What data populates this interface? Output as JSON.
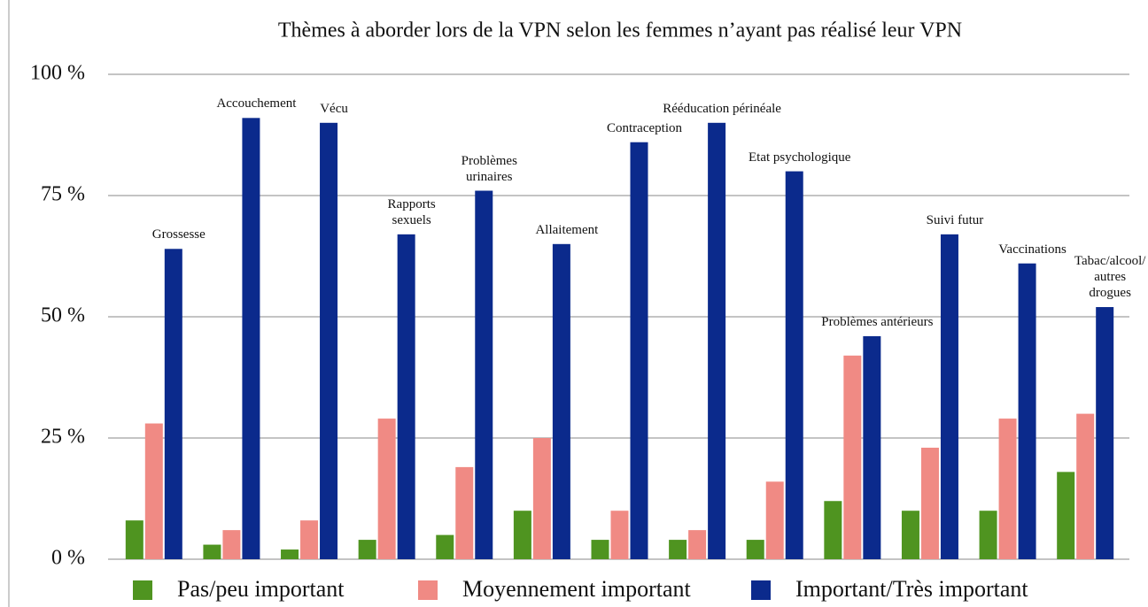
{
  "chart_data": {
    "type": "bar",
    "title": "Thèmes à aborder lors de la VPN selon les femmes n’ayant pas réalisé leur VPN",
    "categories": [
      "Grossesse",
      "Accouchement",
      "Vécu",
      "Rapports\nsexuels",
      "Problèmes\nurinaires",
      "Allaitement",
      "Contraception",
      "Rééducation périnéale",
      "Etat psychologique",
      "Problèmes antérieurs",
      "Suivi futur",
      "Vaccinations",
      "Tabac/alcool/\nautres drogues"
    ],
    "series": [
      {
        "name": "Pas/peu important",
        "color": "#4f9420",
        "values": [
          8,
          3,
          2,
          4,
          5,
          10,
          4,
          4,
          4,
          12,
          10,
          10,
          18
        ]
      },
      {
        "name": "Moyennement important",
        "color": "#f08a84",
        "values": [
          28,
          6,
          8,
          29,
          19,
          25,
          10,
          6,
          16,
          42,
          23,
          29,
          30
        ]
      },
      {
        "name": "Important/Très important",
        "color": "#0b2a8c",
        "values": [
          64,
          91,
          90,
          67,
          76,
          65,
          86,
          90,
          80,
          46,
          67,
          61,
          52
        ]
      }
    ],
    "ylim": [
      0,
      100
    ],
    "yticks": [
      {
        "value": 0,
        "label": "0 %"
      },
      {
        "value": 25,
        "label": "25 %"
      },
      {
        "value": 50,
        "label": "50 %"
      },
      {
        "value": 75,
        "label": "75 %"
      },
      {
        "value": 100,
        "label": "100 %"
      }
    ],
    "grid": true
  }
}
